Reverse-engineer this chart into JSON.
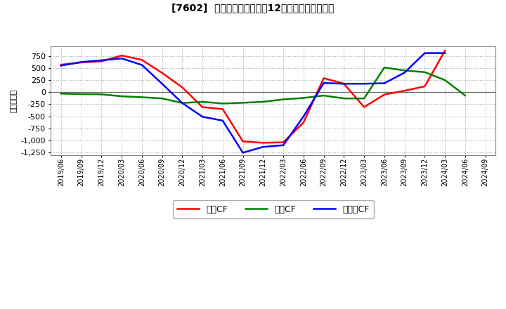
{
  "title": "[7602]  キャッシュフローの12か月移動合計の推移",
  "ylabel": "（百万円）",
  "x_labels": [
    "2019/06",
    "2019/09",
    "2019/12",
    "2020/03",
    "2020/06",
    "2020/09",
    "2020/12",
    "2021/03",
    "2021/06",
    "2021/09",
    "2021/12",
    "2022/03",
    "2022/06",
    "2022/09",
    "2022/12",
    "2023/03",
    "2023/06",
    "2023/09",
    "2023/12",
    "2024/03",
    "2024/06",
    "2024/09"
  ],
  "operating_cf": [
    570,
    615,
    640,
    760,
    670,
    400,
    100,
    -310,
    -350,
    -1020,
    -1050,
    -1040,
    -630,
    290,
    175,
    -310,
    -50,
    30,
    120,
    860,
    null,
    null
  ],
  "investing_cf": [
    -30,
    -40,
    -45,
    -85,
    -105,
    -130,
    -225,
    -200,
    -235,
    -220,
    -200,
    -150,
    -120,
    -70,
    -130,
    -130,
    510,
    450,
    415,
    250,
    -70,
    null
  ],
  "free_cf": [
    550,
    625,
    660,
    700,
    565,
    175,
    -225,
    -510,
    -590,
    -1255,
    -1135,
    -1100,
    -505,
    190,
    175,
    175,
    185,
    405,
    810,
    810,
    null,
    null
  ],
  "ylim": [
    -1300,
    950
  ],
  "yticks": [
    -1250,
    -1000,
    -750,
    -500,
    -250,
    0,
    250,
    500,
    750
  ],
  "operating_color": "#ff0000",
  "investing_color": "#008000",
  "free_color": "#0000ff",
  "legend_labels": [
    "営業CF",
    "投資CF",
    "フリーCF"
  ],
  "background_color": "#ffffff",
  "grid_color": "#999999"
}
